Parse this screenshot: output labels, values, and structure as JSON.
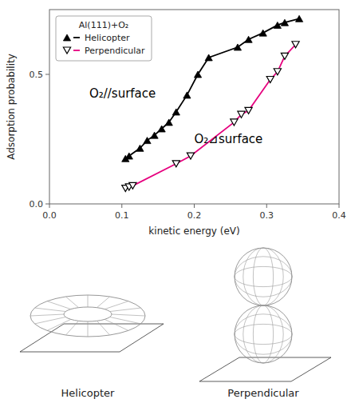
{
  "chart_data": {
    "type": "scatter",
    "title": "Al(111)+O₂",
    "x_label": "kinetic energy (eV)",
    "y_label": "Adsorption probability",
    "xlim": [
      0.0,
      0.4
    ],
    "ylim": [
      0.0,
      0.75
    ],
    "xticks": [
      {
        "value": 0.0,
        "label": "0.0"
      },
      0.1,
      0.2,
      0.3,
      0.4
    ],
    "yticks": [
      {
        "value": 0.0,
        "label": "0.0"
      },
      0.5
    ],
    "grid": false,
    "legend": "top-left",
    "series": [
      {
        "name": "Helicopter",
        "color": "#000000",
        "marker": "triangle-up",
        "line_style": "solid",
        "x": [
          0.105,
          0.11,
          0.125,
          0.135,
          0.145,
          0.155,
          0.165,
          0.175,
          0.19,
          0.205,
          0.22,
          0.26,
          0.275,
          0.295,
          0.315,
          0.325,
          0.345
        ],
        "values": [
          0.175,
          0.185,
          0.215,
          0.245,
          0.265,
          0.29,
          0.315,
          0.355,
          0.42,
          0.5,
          0.565,
          0.605,
          0.635,
          0.66,
          0.69,
          0.7,
          0.715
        ]
      },
      {
        "name": "Perpendicular",
        "color": "#e6007e",
        "marker": "triangle-down-open",
        "line_style": "solid",
        "x": [
          0.105,
          0.11,
          0.115,
          0.175,
          0.195,
          0.255,
          0.265,
          0.275,
          0.305,
          0.315,
          0.325,
          0.34
        ],
        "values": [
          0.06,
          0.065,
          0.07,
          0.155,
          0.185,
          0.315,
          0.345,
          0.36,
          0.48,
          0.51,
          0.57,
          0.615
        ]
      }
    ],
    "annotations": [
      {
        "text": "O₂//surface",
        "x": 0.055,
        "y": 0.41
      },
      {
        "text": "O₂⊿surface",
        "x": 0.2,
        "y": 0.235
      }
    ]
  }
}
